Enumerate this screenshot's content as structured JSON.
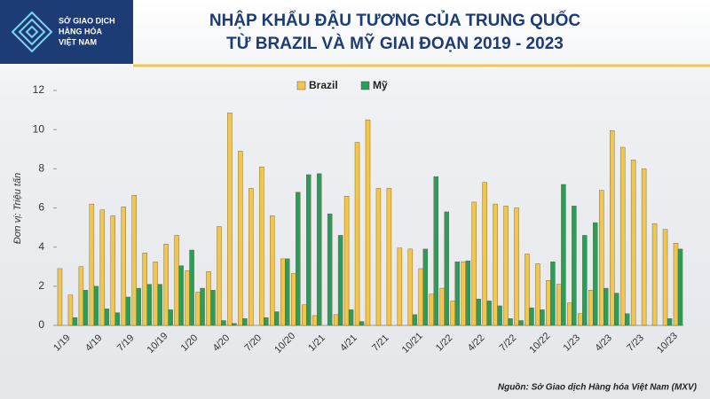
{
  "logo": [
    "SỞ GIAO DỊCH",
    "HÀNG HÓA",
    "VIỆT NAM"
  ],
  "chart_data": {
    "type": "bar",
    "title": [
      "NHẬP KHẨU ĐẬU TƯƠNG CỦA TRUNG QUỐC",
      "TỪ BRAZIL VÀ MỸ GIAI ĐOẠN 2019 - 2023"
    ],
    "y_label": "Đơn vị: Triệu tấn",
    "source": "Nguồn: Sở Giao dịch Hàng hóa Việt Nam (MXV)",
    "categories": [
      "1/19",
      null,
      null,
      "4/19",
      null,
      null,
      "7/19",
      null,
      null,
      "10/19",
      null,
      null,
      "1/20",
      null,
      null,
      "4/20",
      null,
      null,
      "7/20",
      null,
      null,
      "10/20",
      null,
      null,
      "1/21",
      null,
      null,
      "4/21",
      null,
      null,
      "7/21",
      null,
      null,
      "10/21",
      null,
      null,
      "1/22",
      null,
      null,
      "4/22",
      null,
      null,
      "7/22",
      null,
      null,
      "10/22",
      null,
      null,
      "1/23",
      null,
      null,
      "4/23",
      null,
      null,
      "7/23",
      null,
      null,
      "10/23",
      null
    ],
    "series": [
      {
        "name": "Brazil",
        "color": "#f2c64a",
        "values": [
          2.9,
          1.55,
          3.0,
          6.2,
          5.9,
          5.6,
          6.05,
          6.65,
          3.7,
          3.25,
          4.15,
          4.6,
          2.8,
          1.7,
          2.75,
          5.05,
          10.85,
          8.9,
          7.0,
          8.1,
          5.6,
          3.4,
          2.65,
          1.05,
          0.5,
          0,
          0.55,
          6.6,
          9.35,
          10.5,
          7.0,
          7.0,
          3.95,
          3.9,
          2.9,
          1.6,
          1.9,
          1.25,
          3.25,
          6.3,
          7.3,
          6.2,
          6.1,
          6.0,
          3.65,
          3.15,
          2.3,
          2.1,
          1.15,
          0.6,
          1.8,
          6.9,
          9.95,
          9.1,
          8.45,
          8.0,
          5.2,
          4.9,
          4.2
        ]
      },
      {
        "name": "Mỹ",
        "color": "#2a9d5c",
        "values": [
          0,
          0.4,
          1.8,
          2.0,
          0.85,
          0.65,
          1.45,
          1.9,
          2.1,
          2.1,
          0.8,
          3.05,
          3.85,
          1.9,
          1.8,
          0.25,
          0.1,
          0.35,
          0,
          0.4,
          0.7,
          3.4,
          6.8,
          7.7,
          7.75,
          5.7,
          4.6,
          0.8,
          0.2,
          0,
          0,
          0,
          0,
          0.55,
          3.9,
          7.6,
          5.8,
          3.25,
          3.3,
          1.35,
          1.25,
          1.0,
          0.35,
          0.25,
          0.9,
          0.8,
          3.25,
          7.2,
          6.1,
          4.6,
          5.25,
          1.9,
          1.65,
          0.6,
          0,
          0,
          0,
          0.35,
          3.9
        ]
      }
    ],
    "ylim": [
      0,
      12
    ],
    "yticks": [
      0,
      2,
      4,
      6,
      8,
      10,
      12
    ],
    "grid": false
  }
}
